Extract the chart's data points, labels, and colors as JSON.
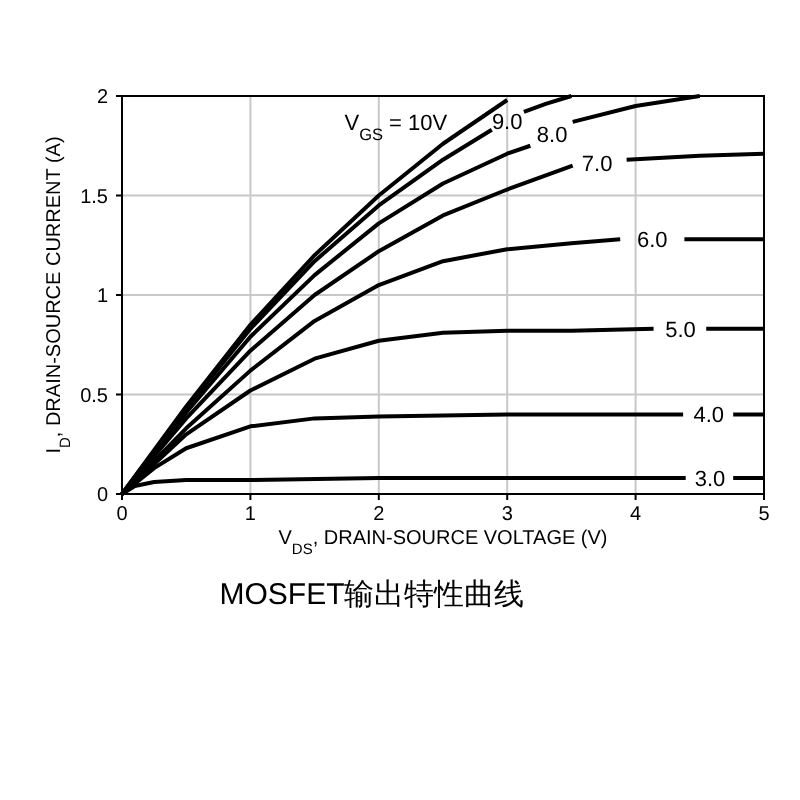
{
  "chart_data": {
    "type": "line",
    "title": "MOSFET输出特性曲线",
    "xlabel": "V$_{DS}$, DRAIN-SOURCE VOLTAGE (V)",
    "ylabel": "I$_{D}$, DRAIN-SOURCE CURRENT (A)",
    "xlim": [
      0,
      5
    ],
    "ylim": [
      0,
      2
    ],
    "xticks": [
      0,
      1,
      2,
      3,
      4,
      5
    ],
    "yticks": [
      0,
      0.5,
      1,
      1.5,
      2
    ],
    "grid": true,
    "legend": false,
    "line_style": "solid",
    "series": [
      {
        "name": "V$_{GS}$ = 10V",
        "color": "#000000",
        "x": [
          0,
          0.5,
          1,
          1.5,
          2,
          2.5,
          3.0
        ],
        "values": [
          0,
          0.44,
          0.85,
          1.2,
          1.5,
          1.76,
          1.98
        ]
      },
      {
        "name": "9.0",
        "color": "#000000",
        "x": [
          0,
          0.5,
          1,
          1.5,
          2,
          2.5,
          2.88,
          3.0,
          3.13,
          3.3,
          3.5
        ],
        "values": [
          0,
          0.43,
          0.83,
          1.17,
          1.45,
          1.68,
          1.83,
          null,
          1.92,
          1.96,
          2.0
        ]
      },
      {
        "name": "8.0",
        "color": "#000000",
        "x": [
          0,
          0.5,
          1,
          1.5,
          2,
          2.5,
          3.0,
          3.18,
          3.35,
          3.51,
          4.0,
          4.5
        ],
        "values": [
          0,
          0.41,
          0.79,
          1.1,
          1.36,
          1.56,
          1.71,
          1.75,
          null,
          1.87,
          1.95,
          2.0
        ]
      },
      {
        "name": "7.0",
        "color": "#000000",
        "x": [
          0,
          0.5,
          1,
          1.5,
          2,
          2.5,
          3,
          3.51,
          3.7,
          3.93,
          4.5,
          5
        ],
        "values": [
          0,
          0.38,
          0.72,
          1.0,
          1.22,
          1.4,
          1.53,
          1.65,
          null,
          1.68,
          1.7,
          1.71
        ]
      },
      {
        "name": "6.0",
        "color": "#000000",
        "x": [
          0,
          0.5,
          1,
          1.5,
          2,
          2.5,
          3,
          3.5,
          3.88,
          4.13,
          4.38,
          5
        ],
        "values": [
          0,
          0.33,
          0.62,
          0.87,
          1.05,
          1.17,
          1.23,
          1.26,
          1.28,
          null,
          1.28,
          1.28
        ]
      },
      {
        "name": "5.0",
        "color": "#000000",
        "x": [
          0,
          0.5,
          1,
          1.5,
          2,
          2.5,
          3,
          3.5,
          4.14,
          4.35,
          4.55,
          5
        ],
        "values": [
          0,
          0.3,
          0.52,
          0.68,
          0.77,
          0.81,
          0.82,
          0.82,
          0.83,
          null,
          0.83,
          0.83
        ]
      },
      {
        "name": "4.0",
        "color": "#000000",
        "x": [
          0,
          0.25,
          0.5,
          1,
          1.5,
          2,
          3,
          4.37,
          4.57,
          4.76,
          5
        ],
        "values": [
          0,
          0.13,
          0.23,
          0.34,
          0.38,
          0.39,
          0.4,
          0.4,
          null,
          0.4,
          0.4
        ]
      },
      {
        "name": "3.0",
        "color": "#000000",
        "x": [
          0,
          0.1,
          0.25,
          0.5,
          1,
          2,
          4.39,
          4.58,
          4.76,
          5
        ],
        "values": [
          0,
          0.04,
          0.06,
          0.07,
          0.07,
          0.08,
          0.08,
          null,
          0.08,
          0.08
        ]
      }
    ]
  }
}
